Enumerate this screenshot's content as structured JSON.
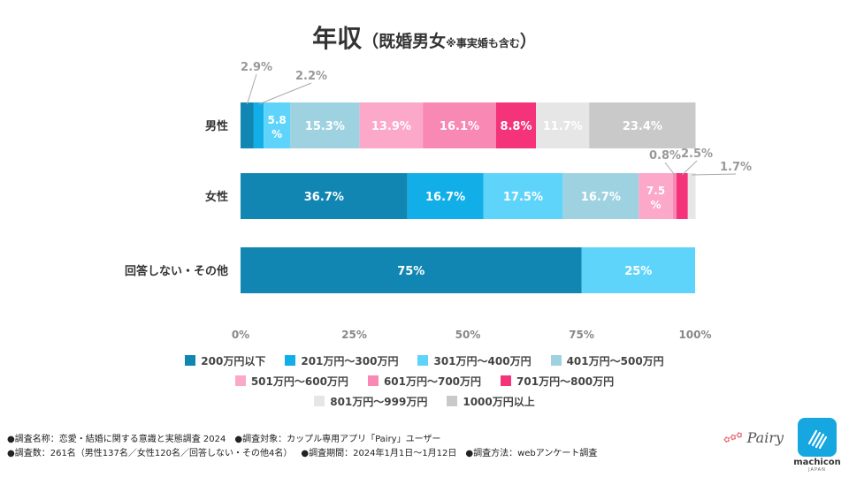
{
  "title": {
    "main": "年収",
    "sub": "（既婚男女",
    "note": "※事実婚も含む",
    "close": "）"
  },
  "colors": {
    "c200": "#1186b2",
    "c201": "#12aee8",
    "c301": "#5fd4fb",
    "c401": "#9fd2e1",
    "c501": "#fca8c8",
    "c601": "#f888b4",
    "c701": "#f4337a",
    "c801": "#e6e6e6",
    "c1000": "#c9c9c9"
  },
  "chart_data": {
    "type": "bar",
    "orientation": "horizontal",
    "stacked": true,
    "percent_stacked": true,
    "title": "年収（既婚男女※事実婚も含む）",
    "xlim": [
      0,
      100
    ],
    "xticks": [
      "0%",
      "25%",
      "50%",
      "75%",
      "100%"
    ],
    "categories": [
      "男性",
      "女性",
      "回答しない・その他"
    ],
    "series": [
      {
        "name": "200万円以下",
        "values": [
          2.9,
          36.7,
          75
        ],
        "labels": [
          "2.9%",
          "36.7%",
          "75%"
        ]
      },
      {
        "name": "201万円～300万円",
        "values": [
          2.2,
          16.7,
          0
        ],
        "labels": [
          "2.2%",
          "16.7%",
          ""
        ]
      },
      {
        "name": "301万円～400万円",
        "values": [
          5.8,
          17.5,
          25
        ],
        "labels": [
          "5.8%",
          "17.5%",
          "25%"
        ]
      },
      {
        "name": "401万円～500万円",
        "values": [
          15.3,
          16.7,
          0
        ],
        "labels": [
          "15.3%",
          "16.7%",
          ""
        ]
      },
      {
        "name": "501万円～600万円",
        "values": [
          13.9,
          7.5,
          0
        ],
        "labels": [
          "13.9%",
          "7.5%",
          ""
        ]
      },
      {
        "name": "601万円～700万円",
        "values": [
          16.1,
          0.8,
          0
        ],
        "labels": [
          "16.1%",
          "0.8%",
          ""
        ]
      },
      {
        "name": "701万円～800万円",
        "values": [
          8.8,
          2.5,
          0
        ],
        "labels": [
          "8.8%",
          "2.5%",
          ""
        ]
      },
      {
        "name": "801万円～999万円",
        "values": [
          11.7,
          1.7,
          0
        ],
        "labels": [
          "11.7%",
          "1.7%",
          ""
        ]
      },
      {
        "name": "1000万円以上",
        "values": [
          23.4,
          0,
          0
        ],
        "labels": [
          "23.4%",
          "",
          ""
        ]
      }
    ],
    "legend": {
      "placement": "bottom"
    }
  },
  "legend_rows": [
    [
      {
        "label": "200万円以下",
        "color": "#1186b2"
      },
      {
        "label": "201万円～300万円",
        "color": "#12aee8"
      },
      {
        "label": "301万円～400万円",
        "color": "#5fd4fb"
      },
      {
        "label": "401万円～500万円",
        "color": "#9fd2e1"
      }
    ],
    [
      {
        "label": "501万円～600万円",
        "color": "#fca8c8"
      },
      {
        "label": "601万円～700万円",
        "color": "#f888b4"
      },
      {
        "label": "701万円～800万円",
        "color": "#f4337a"
      }
    ],
    [
      {
        "label": "801万円～999万円",
        "color": "#e6e6e6"
      },
      {
        "label": "1000万円以上",
        "color": "#c9c9c9"
      }
    ]
  ],
  "footer": {
    "line1_a": "●調査名称：恋愛・結婚に関する意識と実態調査 2024",
    "line1_b": "●調査対象：カップル専用アプリ「Pairy」ユーザー",
    "line2_a": "●調査数：261名（男性137名／女性120名／回答しない・その他4名）",
    "line2_b": "●調査期間：2024年1月1日～1月12日",
    "line2_c": "●調査方法：webアンケート調査"
  },
  "logos": {
    "pairy": "Pairy",
    "machicon": "machicon",
    "machicon_sub": "JAPAN"
  }
}
